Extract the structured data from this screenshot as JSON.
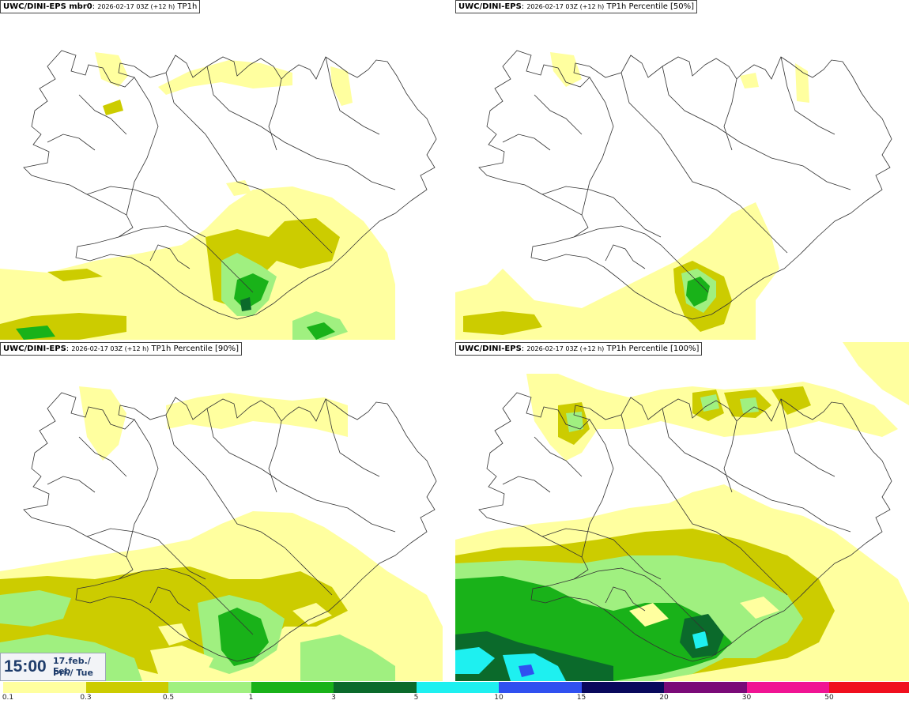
{
  "panels": [
    {
      "model": "UWC/DINI-EPS mbr0",
      "run": "2026-02-17 03Z (+12 h)",
      "param": "TP1h"
    },
    {
      "model": "UWC/DINI-EPS",
      "run": "2026-02-17 03Z (+12 h)",
      "param": "TP1h Percentile [50%]"
    },
    {
      "model": "UWC/DINI-EPS",
      "run": "2026-02-17 03Z (+12 h)",
      "param": "TP1h Percentile [90%]"
    },
    {
      "model": "UWC/DINI-EPS",
      "run": "2026-02-17 03Z (+12 h)",
      "param": "TP1h Percentile [100%]"
    }
  ],
  "clock": {
    "time": "15:00",
    "date_line1": "17.feb./ Feb",
    "date_line2": "Þri./ Tue"
  },
  "legend": {
    "labels": [
      "0.1",
      "0.3",
      "0.5",
      "1",
      "3",
      "5",
      "10",
      "15",
      "20",
      "30",
      "50"
    ],
    "colors": [
      "#ffff9f",
      "#cccc00",
      "#a0f080",
      "#19b219",
      "#0b6a2b",
      "#1ef0f0",
      "#3050f0",
      "#09095c",
      "#7a0a78",
      "#f01493",
      "#f00f1e"
    ]
  },
  "colors": {
    "c1": "#ffff9f",
    "c2": "#cccc00",
    "c3": "#a0f080",
    "c4": "#19b219",
    "c5": "#0b6a2b",
    "c6": "#1ef0f0",
    "c7": "#3050f0"
  }
}
